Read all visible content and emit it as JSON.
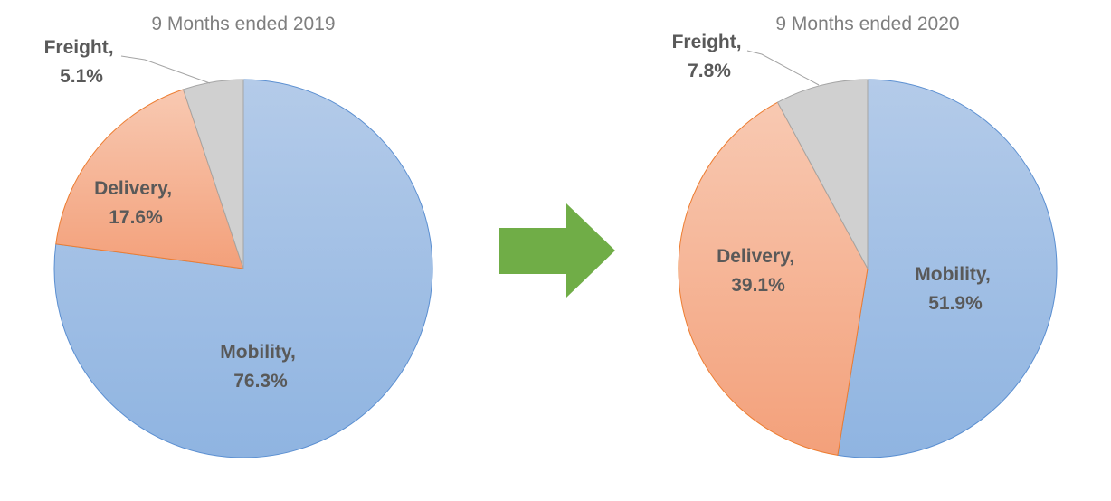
{
  "colors": {
    "mobility_fill_top": "#b4cbe9",
    "mobility_fill_bottom": "#8fb4e1",
    "mobility_stroke": "#5b8fd1",
    "delivery_fill_top": "#f8c9b2",
    "delivery_fill_bottom": "#f3a07a",
    "delivery_stroke": "#ed7d31",
    "freight_fill": "#d0d0d0",
    "freight_stroke": "#a5a5a5",
    "arrow": "#70ad47",
    "title_text": "#7f7f7f",
    "label_text": "#595959"
  },
  "arrow": {
    "icon": "right-arrow-icon",
    "direction": "right"
  },
  "chart_data": [
    {
      "type": "pie",
      "title": "9 Months ended 2019",
      "start_angle": "12 o'clock",
      "direction": "clockwise",
      "slices": [
        {
          "name": "Mobility",
          "value": 76.3,
          "label_line1": "Mobility,",
          "label_line2": "76.3%"
        },
        {
          "name": "Delivery",
          "value": 17.6,
          "label_line1": "Delivery,",
          "label_line2": "17.6%"
        },
        {
          "name": "Freight",
          "value": 5.1,
          "label_line1": "Freight,",
          "label_line2": "5.1%"
        }
      ]
    },
    {
      "type": "pie",
      "title": "9 Months ended 2020",
      "start_angle": "12 o'clock",
      "direction": "clockwise",
      "slices": [
        {
          "name": "Mobility",
          "value": 51.9,
          "label_line1": "Mobility,",
          "label_line2": "51.9%"
        },
        {
          "name": "Delivery",
          "value": 39.1,
          "label_line1": "Delivery,",
          "label_line2": "39.1%"
        },
        {
          "name": "Freight",
          "value": 7.8,
          "label_line1": "Freight,",
          "label_line2": "7.8%"
        }
      ]
    }
  ]
}
